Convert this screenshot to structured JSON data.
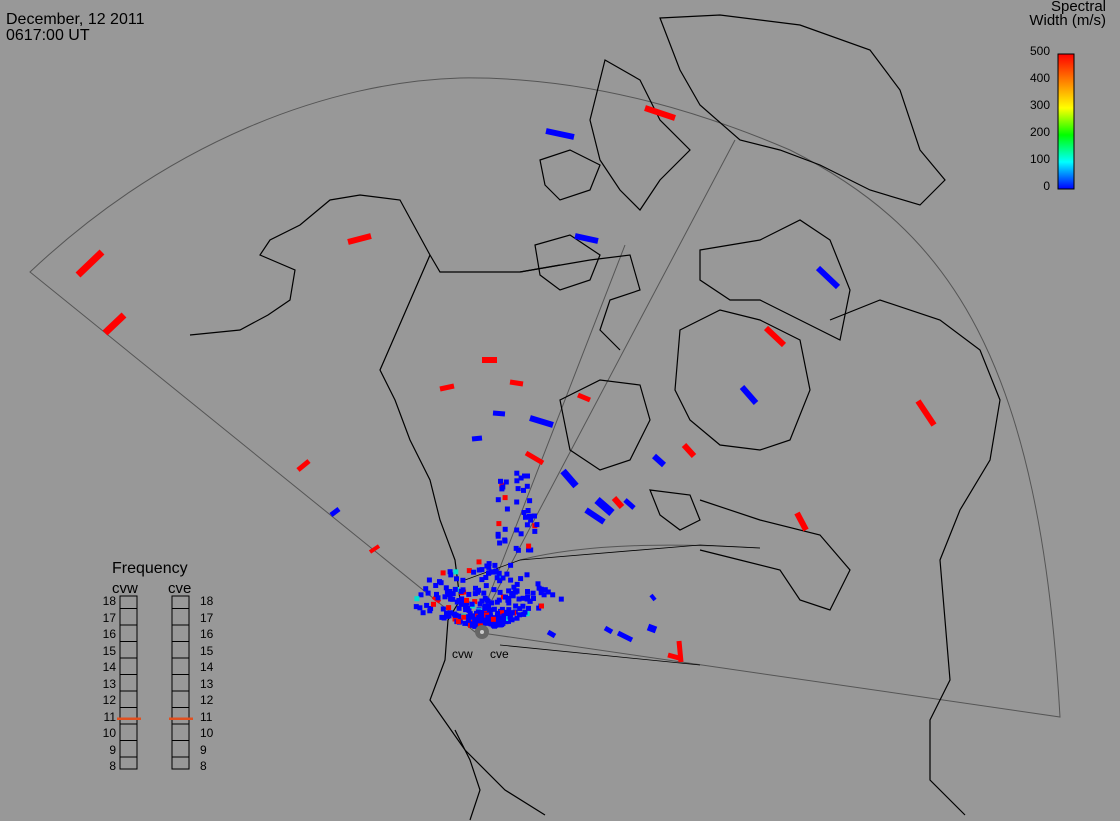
{
  "header": {
    "date": "December, 12 2011",
    "time": "0617:00 UT"
  },
  "colorbar": {
    "title_line1": "Spectral",
    "title_line2": "Width (m/s)",
    "ticks": [
      "500",
      "400",
      "300",
      "200",
      "100",
      "0"
    ],
    "gradient": [
      "#ff0000",
      "#ff8000",
      "#ffff00",
      "#00ff00",
      "#00ffff",
      "#0000ff"
    ]
  },
  "frequency": {
    "title": "Frequency",
    "radars": [
      "cvw",
      "cve"
    ],
    "ticks": [
      "18",
      "17",
      "16",
      "15",
      "14",
      "13",
      "12",
      "11",
      "10",
      "9",
      "8"
    ],
    "cvw_value_mhz": 10.8,
    "cve_value_mhz": 10.8,
    "marker_color": "#e05020"
  },
  "radar_sites": {
    "west": "cvw",
    "east": "cve"
  },
  "colors": {
    "background": "#989898",
    "low_width": "#0000ff",
    "high_width": "#ff0000",
    "mid_width": "#00e0d0"
  }
}
